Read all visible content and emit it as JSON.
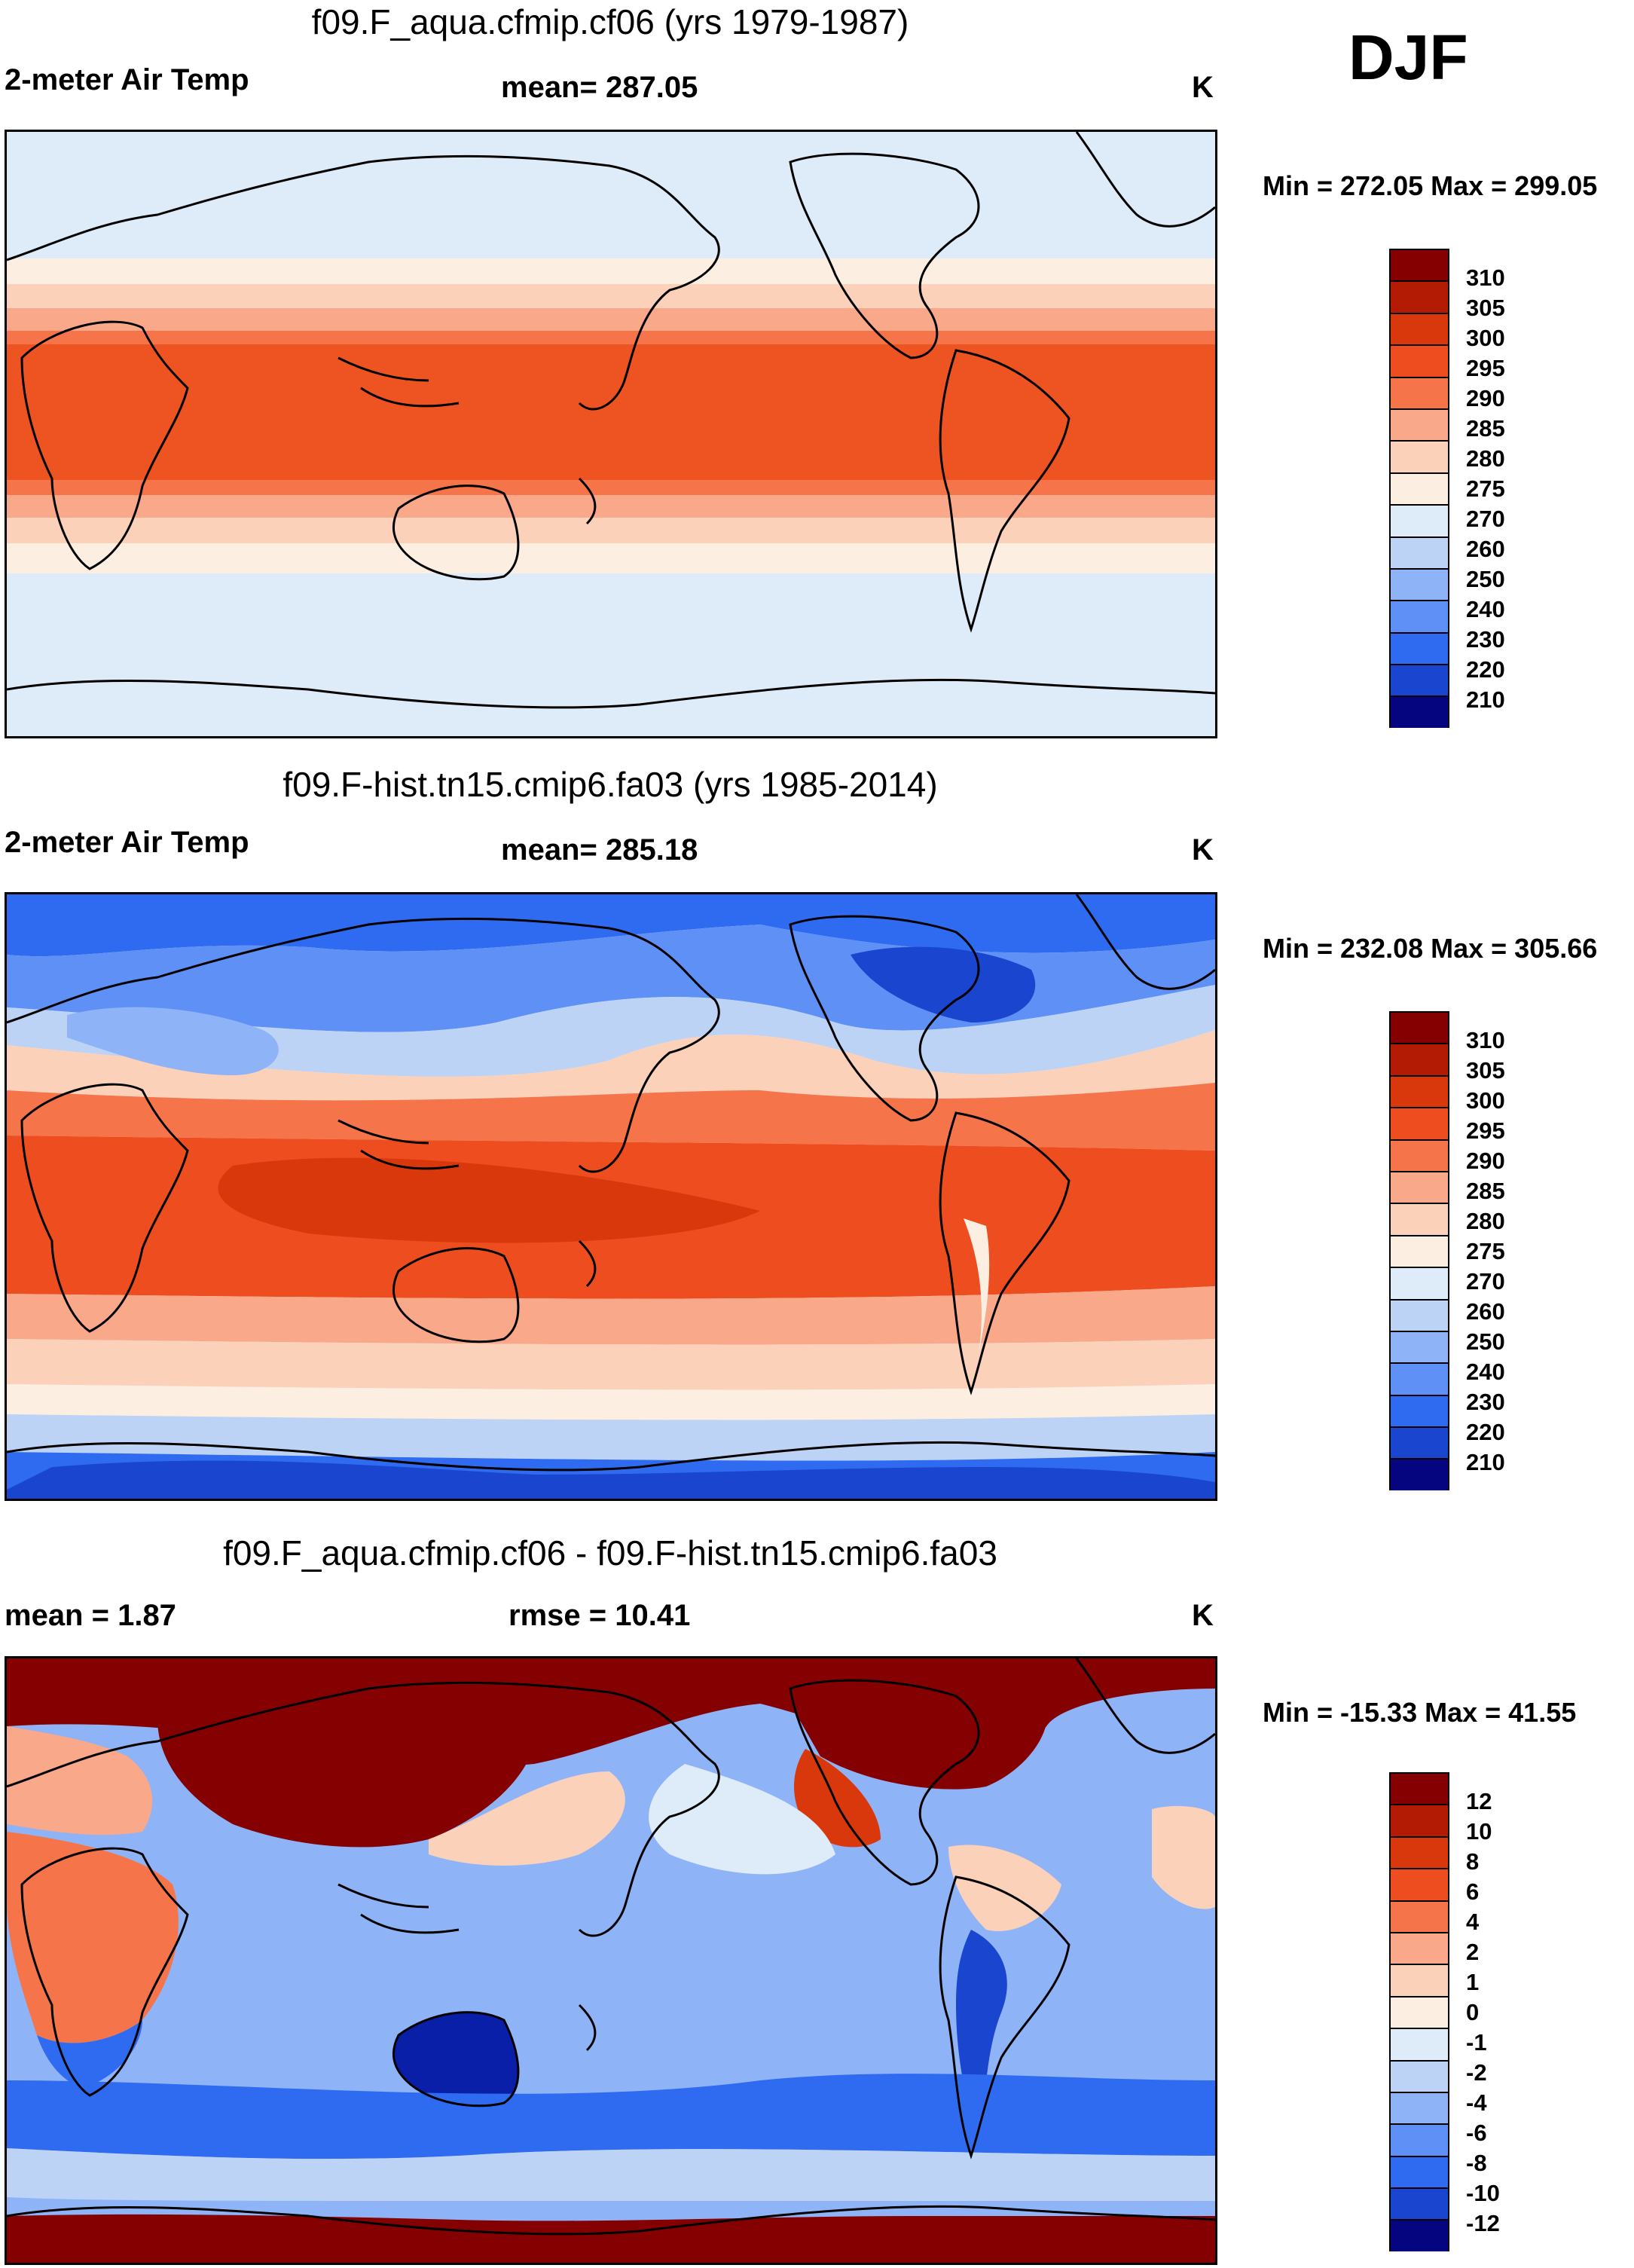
{
  "season": "DJF",
  "colors": {
    "temp_palette": [
      "#050580",
      "#0a1fa8",
      "#1a45cf",
      "#2f6bf0",
      "#5f90f6",
      "#8fb3f7",
      "#bcd3f5",
      "#deebf9",
      "#fdeee2",
      "#fcd1ba",
      "#f9a88a",
      "#f6744a",
      "#ee4e1f",
      "#d9380d",
      "#b41b05",
      "#850000"
    ],
    "diff_palette": [
      "#050580",
      "#0a1fa8",
      "#1a45cf",
      "#2f6bf0",
      "#5f90f6",
      "#8fb3f7",
      "#bcd3f5",
      "#deebf9",
      "#fdeee2",
      "#fcd1ba",
      "#f9a88a",
      "#f6744a",
      "#ee4e1f",
      "#d9380d",
      "#b41b05",
      "#850000"
    ],
    "coastline": "#000000"
  },
  "panels": [
    {
      "title": "f09.F_aqua.cfmip.cf06 (yrs 1979-1987)",
      "left_label": "2-meter Air Temp",
      "center_label": "mean= 287.05",
      "units": "K",
      "minmax": "Min = 272.05 Max = 299.05",
      "colorbar_ticks": [
        "310",
        "305",
        "300",
        "295",
        "290",
        "285",
        "280",
        "275",
        "270",
        "260",
        "250",
        "240",
        "230",
        "220",
        "210"
      ]
    },
    {
      "title": "f09.F-hist.tn15.cmip6.fa03 (yrs 1985-2014)",
      "left_label": "2-meter Air Temp",
      "center_label": "mean= 285.18",
      "units": "K",
      "minmax": "Min = 232.08 Max = 305.66",
      "colorbar_ticks": [
        "310",
        "305",
        "300",
        "295",
        "290",
        "285",
        "280",
        "275",
        "270",
        "260",
        "250",
        "240",
        "230",
        "220",
        "210"
      ]
    },
    {
      "title": "f09.F_aqua.cfmip.cf06 - f09.F-hist.tn15.cmip6.fa03",
      "left_label": "mean =   1.87",
      "center_label": "rmse =  10.41",
      "units": "K",
      "minmax": "Min = -15.33 Max =  41.55",
      "colorbar_ticks": [
        "12",
        "10",
        "8",
        "6",
        "4",
        "2",
        "1",
        "0",
        "-1",
        "-2",
        "-4",
        "-6",
        "-8",
        "-10",
        "-12"
      ]
    }
  ]
}
